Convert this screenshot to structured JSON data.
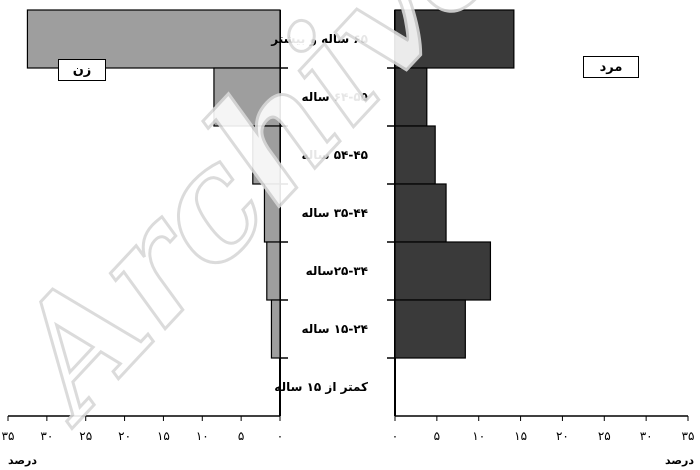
{
  "chart_data": {
    "type": "bar",
    "orientation": "horizontal-population-pyramid",
    "categories": [
      "۶۵ ساله و بیشتر",
      "۶۴-۵۵ ساله",
      "۵۴-۴۵ ساله",
      "۳۵-۴۴ ساله",
      "۲۵-۳۴ساله",
      "۱۵-۲۴ ساله",
      "کمتر از ۱۵ ساله"
    ],
    "series": [
      {
        "name": "زن",
        "side": "left",
        "color": "#9e9e9e",
        "values": [
          32.5,
          8.5,
          3.5,
          2.0,
          1.7,
          1.1,
          0.0
        ]
      },
      {
        "name": "مرد",
        "side": "right",
        "color": "#3a3a3a",
        "values": [
          14.2,
          3.8,
          4.8,
          6.1,
          11.4,
          8.4,
          0.0
        ]
      }
    ],
    "left_axis": {
      "ticks": [
        "۰",
        "۵",
        "۱۰",
        "۱۵",
        "۲۰",
        "۲۵",
        "۳۰",
        "۳۵"
      ],
      "xlim": [
        0,
        35
      ],
      "label": "درصد"
    },
    "right_axis": {
      "ticks": [
        "۰",
        "۵",
        "۱۰",
        "۱۵",
        "۲۰",
        "۲۵",
        "۳۰",
        "۳۵"
      ],
      "xlim": [
        0,
        35
      ],
      "label": "درصد"
    },
    "legend": {
      "left": "زن",
      "right": "مرد"
    },
    "watermark": "Archive",
    "grid": false
  }
}
